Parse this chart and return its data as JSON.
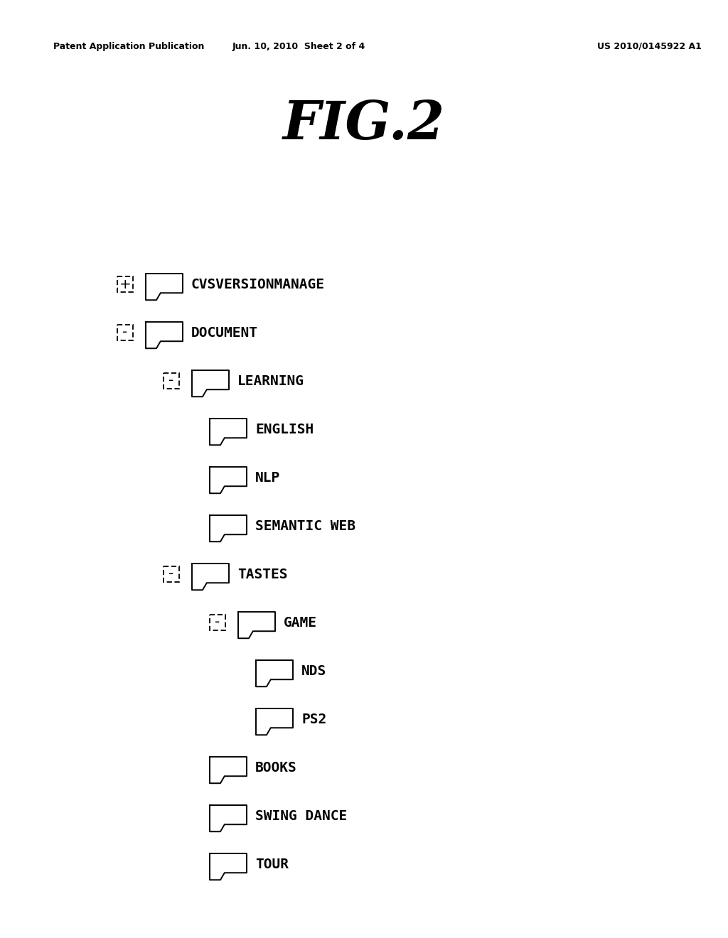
{
  "bg_color": "#ffffff",
  "header_left": "Patent Application Publication",
  "header_center": "Jun. 10, 2010  Sheet 2 of 4",
  "header_right": "US 2010/0145922 A1",
  "figure_title": "FIG.2",
  "tree_items": [
    {
      "level": 0,
      "toggle": "+",
      "has_folder": true,
      "label": "CVSVERSIONMANAGE"
    },
    {
      "level": 0,
      "toggle": "-",
      "has_folder": true,
      "label": "DOCUMENT"
    },
    {
      "level": 1,
      "toggle": "-",
      "has_folder": true,
      "label": "LEARNING"
    },
    {
      "level": 2,
      "toggle": null,
      "has_folder": true,
      "label": "ENGLISH"
    },
    {
      "level": 2,
      "toggle": null,
      "has_folder": true,
      "label": "NLP"
    },
    {
      "level": 2,
      "toggle": null,
      "has_folder": true,
      "label": "SEMANTIC WEB"
    },
    {
      "level": 1,
      "toggle": "-",
      "has_folder": true,
      "label": "TASTES"
    },
    {
      "level": 2,
      "toggle": "-",
      "has_folder": true,
      "label": "GAME"
    },
    {
      "level": 3,
      "toggle": null,
      "has_folder": true,
      "label": "NDS"
    },
    {
      "level": 3,
      "toggle": null,
      "has_folder": true,
      "label": "PS2"
    },
    {
      "level": 2,
      "toggle": null,
      "has_folder": true,
      "label": "BOOKS"
    },
    {
      "level": 2,
      "toggle": null,
      "has_folder": true,
      "label": "SWING DANCE"
    },
    {
      "level": 2,
      "toggle": null,
      "has_folder": true,
      "label": "TOUR"
    }
  ],
  "font_size_label": 14,
  "font_size_header": 9,
  "font_size_title": 54,
  "text_color": "#000000",
  "line_width": 1.4
}
